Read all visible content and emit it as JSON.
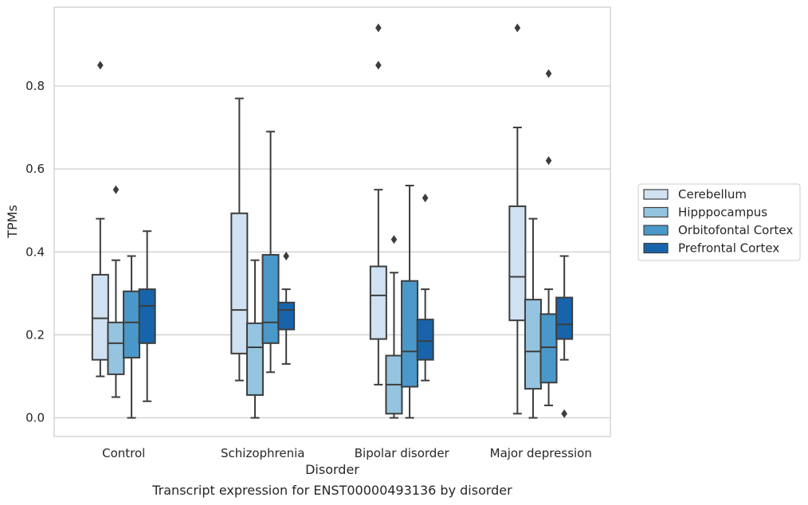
{
  "chart_data": {
    "type": "box",
    "caption": "Transcript expression for ENST00000493136 by disorder",
    "xlabel": "Disorder",
    "ylabel": "TPMs",
    "ylim": [
      -0.045,
      0.99
    ],
    "yticks": [
      0.0,
      0.2,
      0.4,
      0.6,
      0.8
    ],
    "ytick_labels": [
      "0.0",
      "0.2",
      "0.4",
      "0.6",
      "0.8"
    ],
    "grid": "horizontal",
    "legend_position": "outside-right",
    "categories": [
      "Control",
      "Schizophrenia",
      "Bipolar disorder",
      "Major depression"
    ],
    "series": [
      {
        "name": "Cerebellum",
        "color": "#d0e1f2",
        "boxes": [
          {
            "whisker_low": 0.1,
            "q1": 0.14,
            "median": 0.24,
            "q3": 0.345,
            "whisker_high": 0.48,
            "outliers": [
              0.85
            ]
          },
          {
            "whisker_low": 0.09,
            "q1": 0.155,
            "median": 0.26,
            "q3": 0.493,
            "whisker_high": 0.77,
            "outliers": []
          },
          {
            "whisker_low": 0.08,
            "q1": 0.19,
            "median": 0.295,
            "q3": 0.365,
            "whisker_high": 0.55,
            "outliers": [
              0.85,
              0.94
            ]
          },
          {
            "whisker_low": 0.01,
            "q1": 0.235,
            "median": 0.34,
            "q3": 0.51,
            "whisker_high": 0.7,
            "outliers": [
              0.94
            ]
          }
        ]
      },
      {
        "name": "Hipppocampus",
        "color": "#94c4df",
        "boxes": [
          {
            "whisker_low": 0.05,
            "q1": 0.105,
            "median": 0.18,
            "q3": 0.23,
            "whisker_high": 0.38,
            "outliers": [
              0.55
            ]
          },
          {
            "whisker_low": 0.0,
            "q1": 0.055,
            "median": 0.17,
            "q3": 0.228,
            "whisker_high": 0.38,
            "outliers": []
          },
          {
            "whisker_low": 0.0,
            "q1": 0.01,
            "median": 0.08,
            "q3": 0.15,
            "whisker_high": 0.35,
            "outliers": [
              0.43
            ]
          },
          {
            "whisker_low": 0.0,
            "q1": 0.07,
            "median": 0.16,
            "q3": 0.285,
            "whisker_high": 0.48,
            "outliers": []
          }
        ]
      },
      {
        "name": "Orbitofontal Cortex",
        "color": "#4a98c9",
        "boxes": [
          {
            "whisker_low": 0.0,
            "q1": 0.145,
            "median": 0.23,
            "q3": 0.305,
            "whisker_high": 0.39,
            "outliers": []
          },
          {
            "whisker_low": 0.11,
            "q1": 0.18,
            "median": 0.23,
            "q3": 0.393,
            "whisker_high": 0.69,
            "outliers": []
          },
          {
            "whisker_low": 0.0,
            "q1": 0.075,
            "median": 0.16,
            "q3": 0.33,
            "whisker_high": 0.56,
            "outliers": []
          },
          {
            "whisker_low": 0.03,
            "q1": 0.085,
            "median": 0.17,
            "q3": 0.25,
            "whisker_high": 0.31,
            "outliers": [
              0.62,
              0.83
            ]
          }
        ]
      },
      {
        "name": "Prefrontal Cortex",
        "color": "#1764ab",
        "boxes": [
          {
            "whisker_low": 0.04,
            "q1": 0.18,
            "median": 0.27,
            "q3": 0.31,
            "whisker_high": 0.45,
            "outliers": []
          },
          {
            "whisker_low": 0.13,
            "q1": 0.213,
            "median": 0.26,
            "q3": 0.278,
            "whisker_high": 0.31,
            "outliers": [
              0.39
            ]
          },
          {
            "whisker_low": 0.09,
            "q1": 0.14,
            "median": 0.185,
            "q3": 0.237,
            "whisker_high": 0.31,
            "outliers": [
              0.53
            ]
          },
          {
            "whisker_low": 0.14,
            "q1": 0.19,
            "median": 0.225,
            "q3": 0.29,
            "whisker_high": 0.39,
            "outliers": [
              0.01
            ]
          }
        ]
      }
    ]
  }
}
